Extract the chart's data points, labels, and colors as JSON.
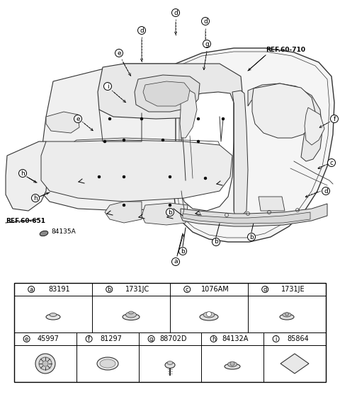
{
  "bg_color": "#ffffff",
  "table": {
    "row1_labels": [
      [
        "a",
        "83191"
      ],
      [
        "b",
        "1731JC"
      ],
      [
        "c",
        "1076AM"
      ],
      [
        "d",
        "1731JE"
      ]
    ],
    "row2_labels": [
      [
        "e",
        "45997"
      ],
      [
        "f",
        "81297"
      ],
      [
        "g",
        "88702D"
      ],
      [
        "h",
        "84132A"
      ],
      [
        "i",
        "85864"
      ]
    ],
    "ref1": "REF.60-651",
    "ref2": "REF.60-710",
    "extra_label": "84135A"
  },
  "diagram": {
    "mat_color": "#dddddd",
    "line_color": "#333333"
  }
}
